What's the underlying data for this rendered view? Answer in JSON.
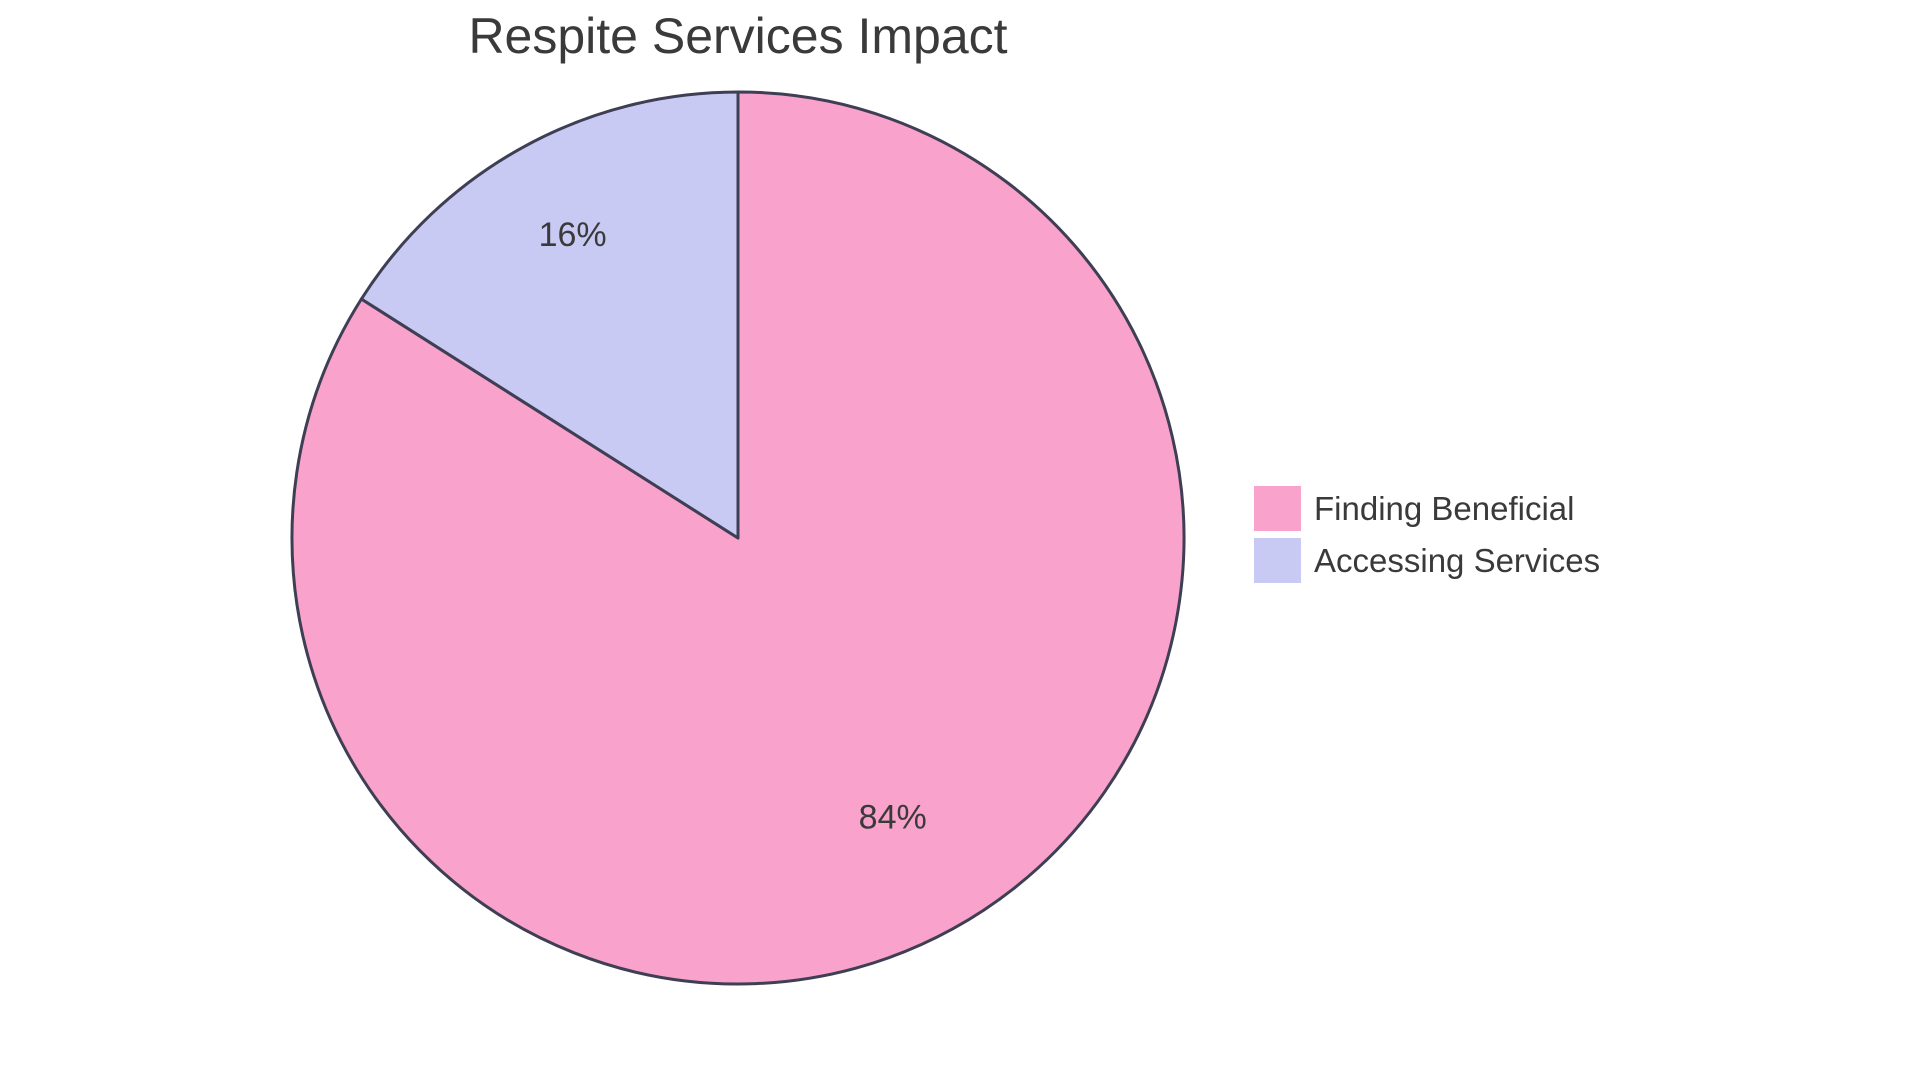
{
  "chart_data": {
    "type": "pie",
    "title": "Respite Services Impact",
    "labels": [
      "Finding Beneficial",
      "Accessing Services"
    ],
    "values": [
      84,
      16
    ],
    "percent_labels": [
      "84%",
      "16%"
    ],
    "colors": [
      "#F9A2CB",
      "#C9CAF3"
    ],
    "border_color": "#3E3E54",
    "text_color": "#3A3A3A",
    "background_color": "#FFFFFF",
    "legend_position": "right",
    "start_angle": "top",
    "direction": "clockwise",
    "labels_inside": true
  }
}
